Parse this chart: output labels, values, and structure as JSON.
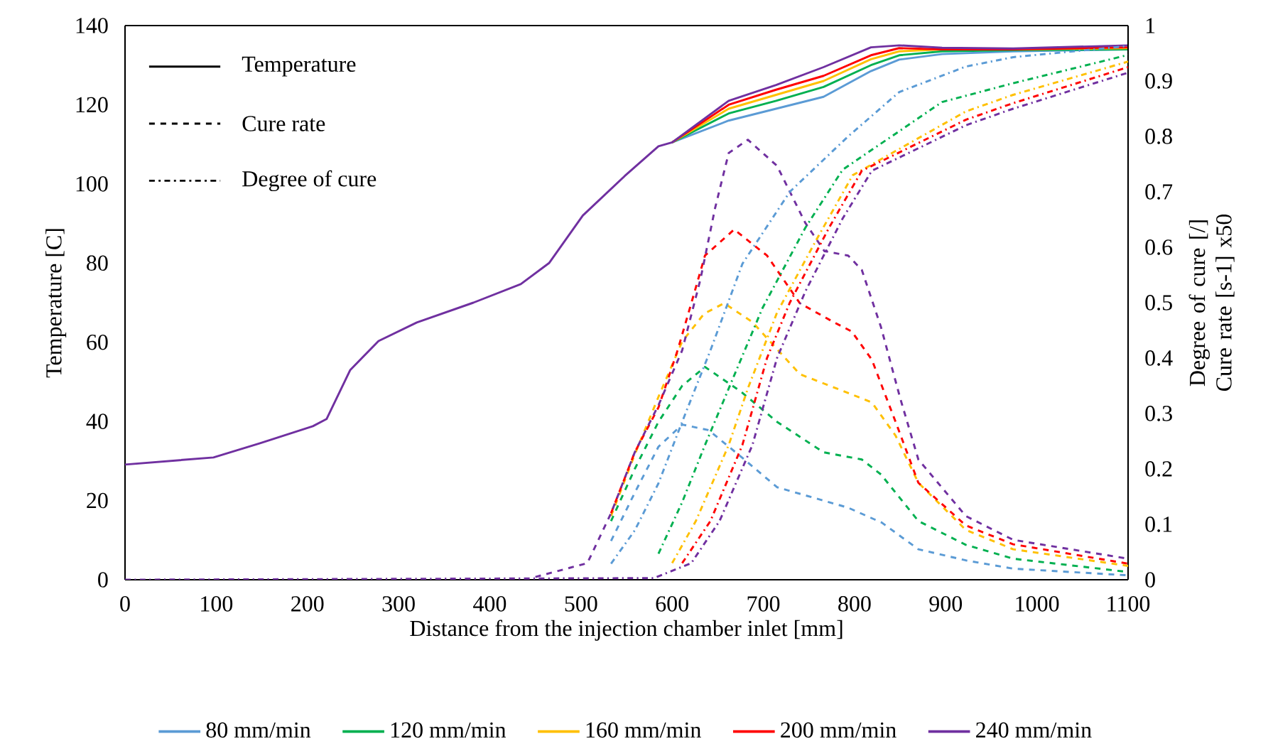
{
  "chart_data": {
    "type": "line",
    "xlabel": "Distance from the injection chamber inlet [mm]",
    "ylabel": "Temperature [C]",
    "y2label": "Degree of cure [/] Cure rate [s-1] x50",
    "xlim": [
      0,
      1100
    ],
    "xticks": [
      0,
      100,
      200,
      300,
      400,
      500,
      600,
      700,
      800,
      900,
      1000,
      1100
    ],
    "ylim": [
      0,
      140
    ],
    "yticks": [
      0,
      20,
      40,
      60,
      80,
      100,
      120,
      140
    ],
    "y2lim": [
      0,
      1
    ],
    "y2ticks": [
      0,
      0.1,
      0.2,
      0.3,
      0.4,
      0.5,
      0.6,
      0.7,
      0.8,
      0.9,
      1
    ],
    "legend": "bottom",
    "grid": false,
    "marker": "none",
    "annotations": [
      "Temperature",
      "Cure rate",
      "Degree of cure"
    ],
    "series": [
      {
        "name": "80 mm/min",
        "color": "#5b9bd5",
        "line_style": "solid",
        "x": [
          600,
          662,
          714,
          766,
          818,
          849,
          896,
          974,
          1100
        ],
        "values": [
          110.5,
          116,
          119,
          122,
          128.5,
          131.4,
          132.8,
          133.5,
          134
        ]
      },
      {
        "name": "120 mm/min",
        "color": "#00b050",
        "line_style": "solid",
        "x": [
          600,
          662,
          714,
          766,
          818,
          849,
          896,
          974,
          1100
        ],
        "values": [
          110.5,
          117.8,
          121,
          124.5,
          130,
          132.5,
          133.5,
          133.8,
          134
        ]
      },
      {
        "name": "160 mm/min",
        "color": "#ffc000",
        "line_style": "solid",
        "x": [
          600,
          662,
          714,
          766,
          818,
          849,
          896,
          974,
          1100
        ],
        "values": [
          110.5,
          119,
          122.5,
          126,
          131.5,
          133.5,
          134,
          134,
          134.3
        ]
      },
      {
        "name": "200 mm/min",
        "color": "#ff0000",
        "line_style": "solid",
        "x": [
          600,
          662,
          714,
          766,
          818,
          849,
          896,
          974,
          1100
        ],
        "values": [
          110.5,
          120,
          123.8,
          127.3,
          132.5,
          134.3,
          134,
          134,
          134.5
        ]
      },
      {
        "name": "240 mm/min",
        "color": "#7030a0",
        "line_style": "solid",
        "x": [
          0,
          97,
          148,
          206,
          221,
          247,
          278,
          320,
          382,
          434,
          465,
          502,
          548,
          585,
          600,
          662,
          714,
          766,
          818,
          849,
          896,
          974,
          1100
        ],
        "values": [
          29.1,
          30.9,
          34.5,
          38.8,
          40.6,
          53,
          60.3,
          65,
          70,
          74.7,
          80,
          92,
          102,
          109.5,
          110.5,
          121,
          125,
          129.5,
          134.5,
          135,
          134.4,
          134.2,
          135
        ]
      },
      {
        "color": "#5b9bd5",
        "line_style": "dashed",
        "axis": "y2",
        "x": [
          533,
          559,
          585,
          611,
          640,
          677,
          715,
          793,
          830,
          870,
          922,
          974,
          1100
        ],
        "values": [
          0.07,
          0.157,
          0.24,
          0.28,
          0.27,
          0.22,
          0.167,
          0.13,
          0.103,
          0.055,
          0.035,
          0.02,
          0.008
        ]
      },
      {
        "color": "#00b050",
        "line_style": "dashed",
        "axis": "y2",
        "x": [
          533,
          559,
          585,
          611,
          636,
          675,
          715,
          766,
          808,
          829,
          870,
          922,
          974,
          1100
        ],
        "values": [
          0.106,
          0.2,
          0.285,
          0.35,
          0.384,
          0.34,
          0.285,
          0.23,
          0.217,
          0.19,
          0.106,
          0.063,
          0.038,
          0.014
        ]
      },
      {
        "color": "#ffc000",
        "line_style": "dashed",
        "axis": "y2",
        "x": [
          533,
          559,
          585,
          611,
          635,
          657,
          688,
          740,
          793,
          819,
          845,
          870,
          922,
          974,
          1100
        ],
        "values": [
          0.115,
          0.226,
          0.33,
          0.43,
          0.48,
          0.499,
          0.465,
          0.371,
          0.337,
          0.32,
          0.26,
          0.175,
          0.09,
          0.055,
          0.025
        ]
      },
      {
        "color": "#ff0000",
        "line_style": "dashed",
        "axis": "y2",
        "x": [
          533,
          559,
          585,
          606,
          621,
          636,
          668,
          704,
          740,
          777,
          797,
          819,
          845,
          870,
          922,
          974,
          1100
        ],
        "values": [
          0.12,
          0.23,
          0.311,
          0.414,
          0.499,
          0.585,
          0.632,
          0.585,
          0.499,
          0.465,
          0.448,
          0.397,
          0.285,
          0.175,
          0.098,
          0.064,
          0.029
        ]
      },
      {
        "color": "#7030a0",
        "line_style": "dashed",
        "axis": "y2",
        "x": [
          450,
          507,
          533,
          559,
          585,
          611,
          631,
          647,
          662,
          683,
          715,
          746,
          767,
          793,
          808,
          829,
          850,
          870,
          922,
          974,
          1100
        ],
        "values": [
          0.005,
          0.03,
          0.12,
          0.23,
          0.315,
          0.414,
          0.542,
          0.67,
          0.77,
          0.794,
          0.747,
          0.644,
          0.593,
          0.585,
          0.559,
          0.456,
          0.328,
          0.217,
          0.115,
          0.072,
          0.038
        ]
      },
      {
        "color": "#5b9bd5",
        "line_style": "dashdot",
        "axis": "y2",
        "x": [
          533,
          559,
          585,
          611,
          642,
          677,
          729,
          793,
          849,
          922,
          974,
          1100
        ],
        "values": [
          0.029,
          0.089,
          0.174,
          0.285,
          0.414,
          0.57,
          0.7,
          0.8,
          0.88,
          0.926,
          0.943,
          0.963
        ]
      },
      {
        "color": "#00b050",
        "line_style": "dashdot",
        "axis": "y2",
        "x": [
          585,
          611,
          636,
          662,
          699,
          746,
          787,
          896,
          974,
          1100
        ],
        "values": [
          0.047,
          0.14,
          0.243,
          0.345,
          0.49,
          0.635,
          0.74,
          0.862,
          0.896,
          0.947
        ]
      },
      {
        "color": "#ffc000",
        "line_style": "dashdot",
        "axis": "y2",
        "x": [
          600,
          626,
          662,
          683,
          715,
          757,
          798,
          922,
          974,
          1100
        ],
        "values": [
          0.03,
          0.106,
          0.243,
          0.345,
          0.482,
          0.61,
          0.73,
          0.845,
          0.875,
          0.935
        ]
      },
      {
        "color": "#ff0000",
        "line_style": "dashdot",
        "axis": "y2",
        "x": [
          611,
          642,
          677,
          704,
          729,
          772,
          808,
          922,
          974,
          1100
        ],
        "values": [
          0.03,
          0.106,
          0.243,
          0.4,
          0.5,
          0.635,
          0.738,
          0.83,
          0.86,
          0.925
        ]
      },
      {
        "color": "#7030a0",
        "line_style": "dashdot",
        "axis": "y2",
        "x": [
          0,
          580,
          621,
          652,
          688,
          715,
          746,
          787,
          819,
          922,
          974,
          1100
        ],
        "values": [
          0,
          0.003,
          0.03,
          0.106,
          0.243,
          0.4,
          0.52,
          0.652,
          0.738,
          0.82,
          0.85,
          0.915
        ]
      }
    ]
  }
}
